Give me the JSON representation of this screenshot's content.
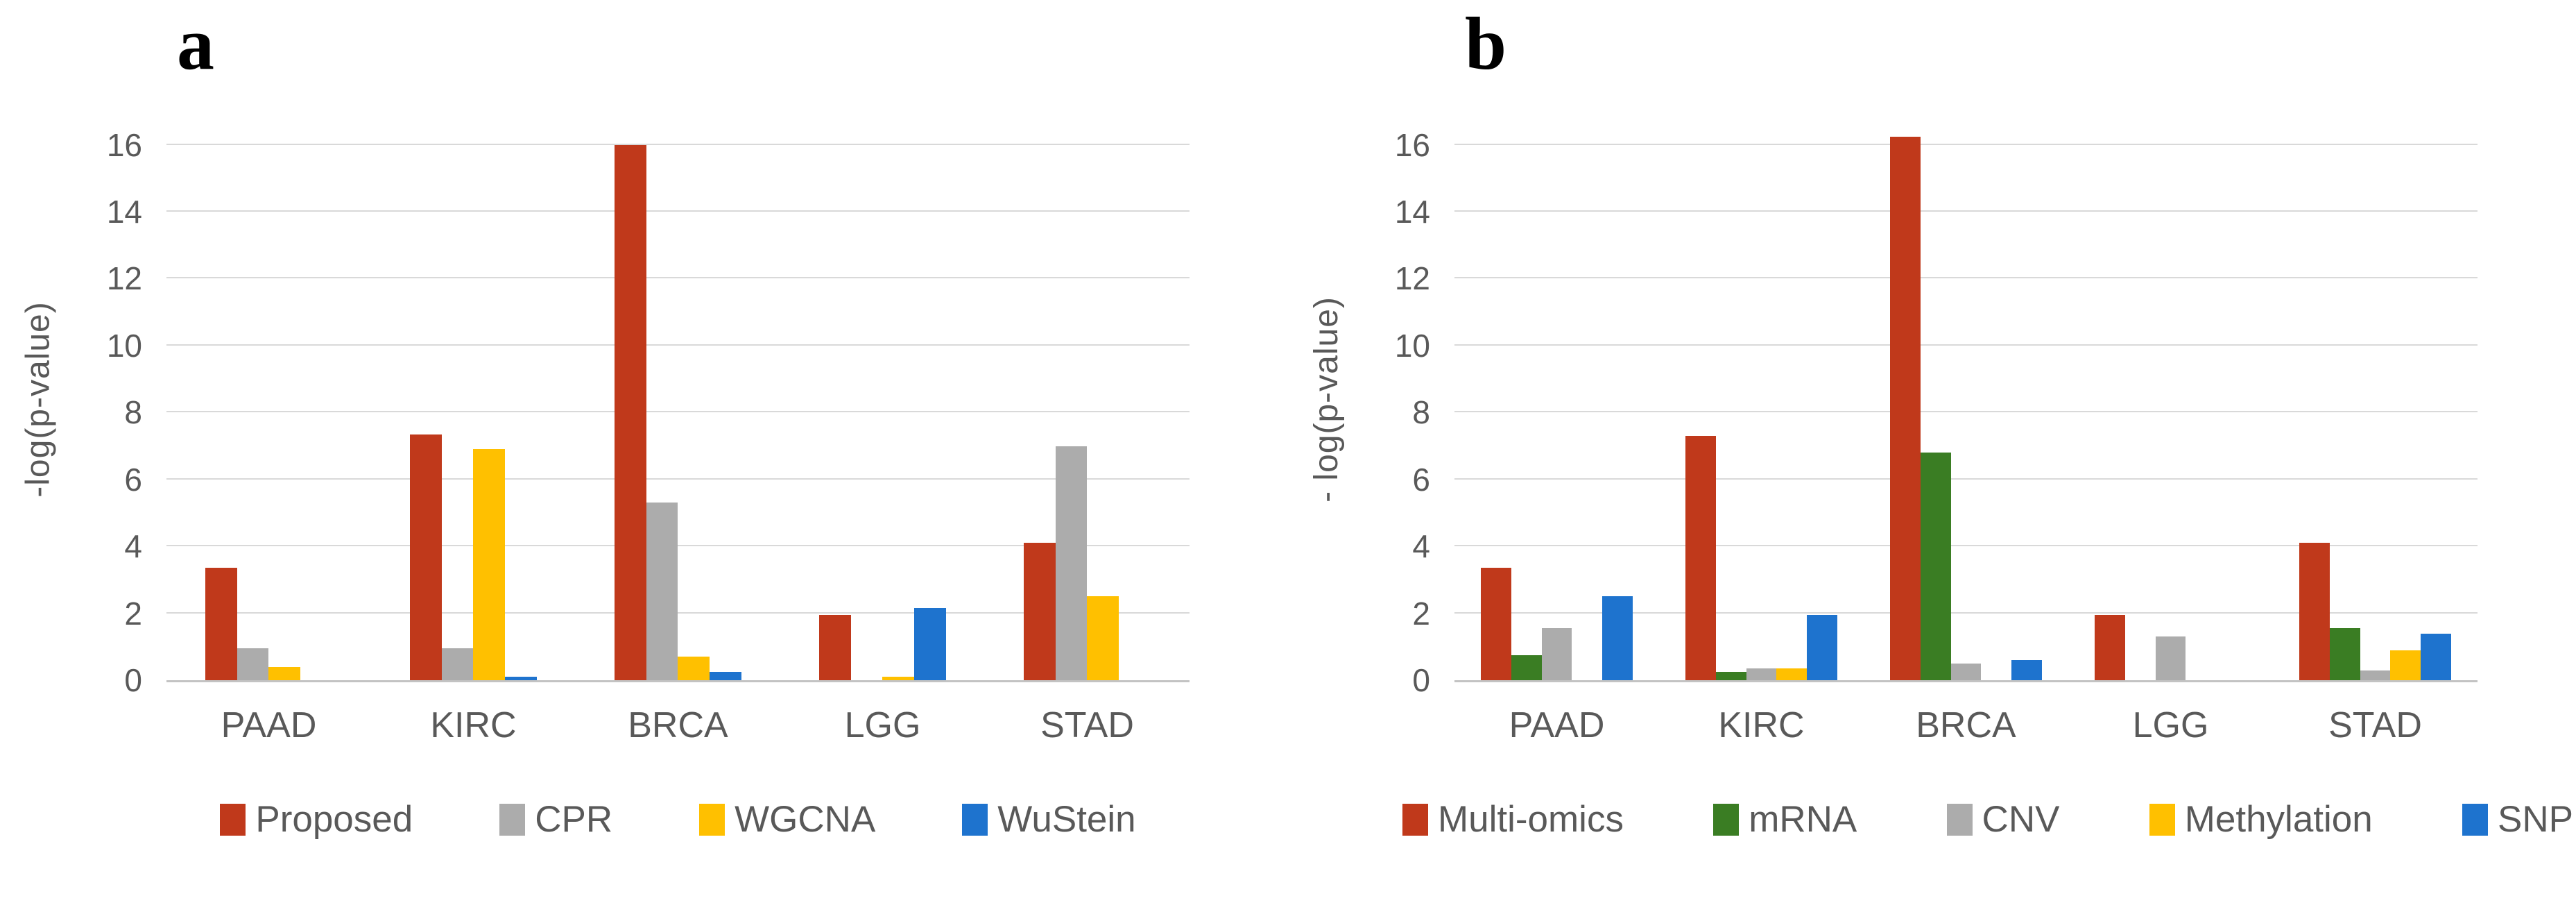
{
  "page": {
    "type": "two-panel grouped bar chart figure",
    "text_color": "#595959",
    "gridline_color": "#d9d9d9"
  },
  "colors": {
    "red": "#c0391b",
    "gray": "#acacac",
    "gold": "#ffc000",
    "blue": "#1e73ce",
    "green": "#3a7d23"
  },
  "chart_data": [
    {
      "type": "bar",
      "panel_label": "a",
      "ylabel": "-log(p-value)",
      "yticks": [
        0,
        2,
        4,
        6,
        8,
        10,
        12,
        14,
        16
      ],
      "ylim": [
        0,
        16
      ],
      "grid": true,
      "legend_position": "bottom-center",
      "categories": [
        "PAAD",
        "KIRC",
        "BRCA",
        "LGG",
        "STAD"
      ],
      "series": [
        {
          "name": "Proposed",
          "color": "#c0391b",
          "values": [
            3.35,
            7.35,
            16.0,
            1.95,
            4.1
          ]
        },
        {
          "name": "CPR",
          "color": "#acacac",
          "values": [
            0.95,
            0.95,
            5.3,
            0,
            7.0
          ]
        },
        {
          "name": "WGCNA",
          "color": "#ffc000",
          "values": [
            0.4,
            6.9,
            0.7,
            0.1,
            2.5
          ]
        },
        {
          "name": "WuStein",
          "color": "#1e73ce",
          "values": [
            0,
            0.1,
            0.25,
            2.15,
            0
          ]
        }
      ]
    },
    {
      "type": "bar",
      "panel_label": "b",
      "ylabel": "- log(p-value)",
      "yticks": [
        0,
        2,
        4,
        6,
        8,
        10,
        12,
        14,
        16
      ],
      "ylim": [
        0,
        16
      ],
      "grid": true,
      "legend_position": "bottom-spread",
      "categories": [
        "PAAD",
        "KIRC",
        "BRCA",
        "LGG",
        "STAD"
      ],
      "series": [
        {
          "name": "Multi-omics",
          "color": "#c0391b",
          "values": [
            3.35,
            7.3,
            16.25,
            1.95,
            4.1
          ]
        },
        {
          "name": "mRNA",
          "color": "#3a7d23",
          "values": [
            0.75,
            0.25,
            6.8,
            0,
            1.55
          ]
        },
        {
          "name": "CNV",
          "color": "#acacac",
          "values": [
            1.55,
            0.35,
            0.5,
            1.3,
            0.3
          ]
        },
        {
          "name": "Methylation",
          "color": "#ffc000",
          "values": [
            0,
            0.35,
            0,
            0,
            0.9
          ]
        },
        {
          "name": "SNP",
          "color": "#1e73ce",
          "values": [
            2.5,
            1.95,
            0.6,
            0,
            1.4
          ]
        }
      ]
    }
  ]
}
